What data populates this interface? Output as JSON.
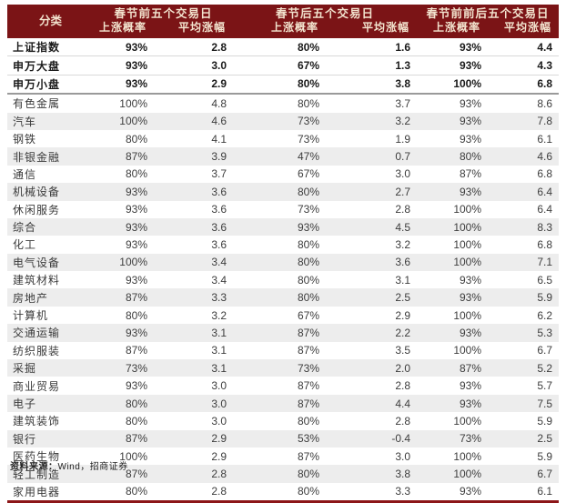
{
  "colors": {
    "header_bg": "#7B1416",
    "header_text": "#F2E3CE",
    "stripe_row_bg": "#EDEDED",
    "bottom_rule": "#8C1618",
    "index_row_separator": "#D9D9D9",
    "index_block_separator": "#9A9A9A"
  },
  "chart_data": {
    "type": "table",
    "header": {
      "category": "分类",
      "groups": [
        {
          "title": "春节前五个交易日",
          "subcolumns": [
            "上涨概率",
            "平均涨幅"
          ]
        },
        {
          "title": "春节后五个交易日",
          "subcolumns": [
            "上涨概率",
            "平均涨幅"
          ]
        },
        {
          "title": "春节前前后五个交易日",
          "subcolumns": [
            "上涨概率",
            "平均涨幅"
          ]
        }
      ]
    },
    "index_rows": [
      {
        "label": "上证指数",
        "values": [
          "93%",
          "2.8",
          "80%",
          "1.6",
          "93%",
          "4.4"
        ]
      },
      {
        "label": "申万大盘",
        "values": [
          "93%",
          "3.0",
          "67%",
          "1.3",
          "93%",
          "4.3"
        ]
      },
      {
        "label": "申万小盘",
        "values": [
          "93%",
          "2.9",
          "80%",
          "3.8",
          "100%",
          "6.8"
        ]
      }
    ],
    "sector_rows": [
      {
        "label": "有色金属",
        "values": [
          "100%",
          "4.8",
          "80%",
          "3.7",
          "93%",
          "8.6"
        ]
      },
      {
        "label": "汽车",
        "values": [
          "100%",
          "4.6",
          "73%",
          "3.2",
          "93%",
          "7.8"
        ]
      },
      {
        "label": "钢铁",
        "values": [
          "80%",
          "4.1",
          "73%",
          "1.9",
          "93%",
          "6.1"
        ]
      },
      {
        "label": "非银金融",
        "values": [
          "87%",
          "3.9",
          "47%",
          "0.7",
          "80%",
          "4.6"
        ]
      },
      {
        "label": "通信",
        "values": [
          "80%",
          "3.7",
          "67%",
          "3.0",
          "87%",
          "6.8"
        ]
      },
      {
        "label": "机械设备",
        "values": [
          "93%",
          "3.6",
          "80%",
          "2.7",
          "93%",
          "6.4"
        ]
      },
      {
        "label": "休闲服务",
        "values": [
          "93%",
          "3.6",
          "73%",
          "2.8",
          "100%",
          "6.4"
        ]
      },
      {
        "label": "综合",
        "values": [
          "93%",
          "3.6",
          "93%",
          "4.5",
          "100%",
          "8.3"
        ]
      },
      {
        "label": "化工",
        "values": [
          "93%",
          "3.6",
          "80%",
          "3.2",
          "100%",
          "6.8"
        ]
      },
      {
        "label": "电气设备",
        "values": [
          "100%",
          "3.4",
          "80%",
          "3.6",
          "100%",
          "7.1"
        ]
      },
      {
        "label": "建筑材料",
        "values": [
          "93%",
          "3.4",
          "80%",
          "3.1",
          "93%",
          "6.5"
        ]
      },
      {
        "label": "房地产",
        "values": [
          "87%",
          "3.3",
          "80%",
          "2.5",
          "93%",
          "5.9"
        ]
      },
      {
        "label": "计算机",
        "values": [
          "80%",
          "3.2",
          "67%",
          "2.9",
          "100%",
          "6.2"
        ]
      },
      {
        "label": "交通运输",
        "values": [
          "93%",
          "3.1",
          "87%",
          "2.2",
          "93%",
          "5.3"
        ]
      },
      {
        "label": "纺织服装",
        "values": [
          "87%",
          "3.1",
          "87%",
          "3.5",
          "100%",
          "6.7"
        ]
      },
      {
        "label": "采掘",
        "values": [
          "73%",
          "3.1",
          "73%",
          "2.0",
          "87%",
          "5.2"
        ]
      },
      {
        "label": "商业贸易",
        "values": [
          "93%",
          "3.0",
          "87%",
          "2.8",
          "93%",
          "5.7"
        ]
      },
      {
        "label": "电子",
        "values": [
          "80%",
          "3.0",
          "87%",
          "4.4",
          "93%",
          "7.5"
        ]
      },
      {
        "label": "建筑装饰",
        "values": [
          "80%",
          "3.0",
          "80%",
          "2.8",
          "100%",
          "5.9"
        ]
      },
      {
        "label": "银行",
        "values": [
          "87%",
          "2.9",
          "53%",
          "-0.4",
          "73%",
          "2.5"
        ]
      },
      {
        "label": "医药生物",
        "values": [
          "100%",
          "2.9",
          "87%",
          "3.0",
          "100%",
          "5.9"
        ]
      },
      {
        "label": "轻工制造",
        "values": [
          "87%",
          "2.8",
          "80%",
          "3.8",
          "100%",
          "6.7"
        ]
      },
      {
        "label": "家用电器",
        "values": [
          "80%",
          "2.8",
          "80%",
          "3.3",
          "93%",
          "6.1"
        ]
      }
    ]
  },
  "footer": {
    "source_prefix": "资料来源：",
    "source_text": "Wind，招商证券"
  }
}
